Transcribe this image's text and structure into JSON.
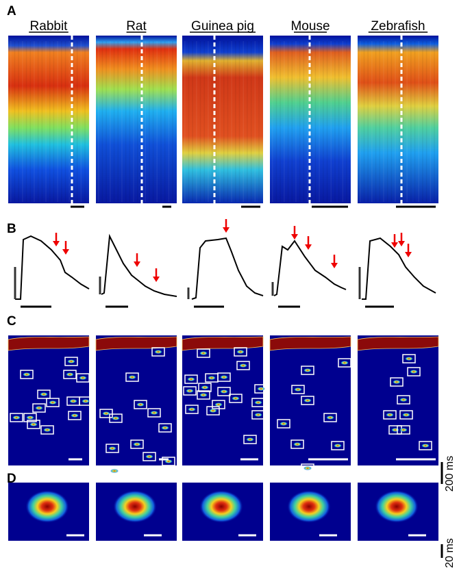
{
  "panel_labels": [
    "A",
    "B",
    "C",
    "D"
  ],
  "species": [
    "Rabbit",
    "Rat",
    "Guinea pig",
    "Mouse",
    "Zebrafish"
  ],
  "scale_labels": {
    "panel_c": "200 ms",
    "panel_d": "20 ms"
  }
}
